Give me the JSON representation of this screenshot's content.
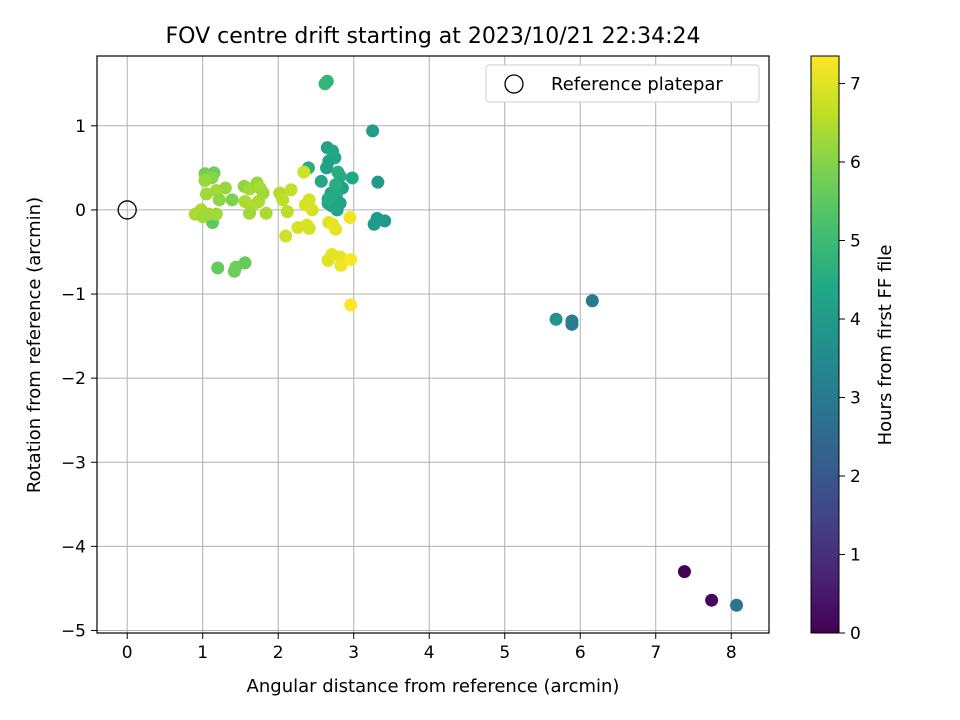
{
  "chart_data": {
    "type": "scatter",
    "title": "FOV centre drift starting at 2023/10/21 22:34:24",
    "xlabel": "Angular distance from reference (arcmin)",
    "ylabel": "Rotation from reference (arcmin)",
    "xlim": [
      -0.4,
      8.5
    ],
    "ylim": [
      -5.03,
      1.83
    ],
    "xticks": [
      "0",
      "1",
      "2",
      "3",
      "4",
      "5",
      "6",
      "7",
      "8"
    ],
    "yticks": [
      "1",
      "0",
      "−1",
      "−2",
      "−3",
      "−4",
      "−5"
    ],
    "grid": true,
    "legend": {
      "placement": "top-right",
      "entries": [
        "Reference platepar"
      ]
    },
    "reference_point": {
      "x": 0,
      "y": 0
    },
    "colorbar": {
      "label": "Hours from first FF file",
      "range": [
        0,
        7.35
      ],
      "ticks": [
        "0",
        "1",
        "2",
        "3",
        "4",
        "5",
        "6",
        "7"
      ],
      "colormap": "viridis"
    },
    "points": [
      {
        "x": 7.38,
        "y": -4.3,
        "t": 0.0
      },
      {
        "x": 7.74,
        "y": -4.64,
        "t": 0.15
      },
      {
        "x": 8.07,
        "y": -4.7,
        "t": 2.85
      },
      {
        "x": 6.16,
        "y": -1.08,
        "t": 2.9
      },
      {
        "x": 5.89,
        "y": -1.36,
        "t": 3.05
      },
      {
        "x": 5.89,
        "y": -1.32,
        "t": 3.1
      },
      {
        "x": 5.68,
        "y": -1.3,
        "t": 3.8
      },
      {
        "x": 3.25,
        "y": 0.94,
        "t": 4.05
      },
      {
        "x": 3.32,
        "y": 0.33,
        "t": 3.95
      },
      {
        "x": 3.41,
        "y": -0.13,
        "t": 3.9
      },
      {
        "x": 3.31,
        "y": -0.1,
        "t": 4.0
      },
      {
        "x": 3.27,
        "y": -0.17,
        "t": 4.0
      },
      {
        "x": 2.62,
        "y": 1.5,
        "t": 4.85
      },
      {
        "x": 2.65,
        "y": 1.53,
        "t": 4.8
      },
      {
        "x": 2.65,
        "y": 0.74,
        "t": 4.2
      },
      {
        "x": 2.72,
        "y": 0.7,
        "t": 4.4
      },
      {
        "x": 2.75,
        "y": 0.62,
        "t": 4.35
      },
      {
        "x": 2.67,
        "y": 0.58,
        "t": 4.3
      },
      {
        "x": 2.64,
        "y": 0.5,
        "t": 4.2
      },
      {
        "x": 2.79,
        "y": 0.45,
        "t": 4.6
      },
      {
        "x": 2.82,
        "y": 0.4,
        "t": 4.5
      },
      {
        "x": 2.98,
        "y": 0.38,
        "t": 4.4
      },
      {
        "x": 2.57,
        "y": 0.34,
        "t": 4.4
      },
      {
        "x": 2.8,
        "y": 0.3,
        "t": 4.3
      },
      {
        "x": 2.85,
        "y": 0.26,
        "t": 4.2
      },
      {
        "x": 2.4,
        "y": 0.5,
        "t": 4.6
      },
      {
        "x": 2.7,
        "y": 0.2,
        "t": 4.3
      },
      {
        "x": 2.77,
        "y": 0.17,
        "t": 4.5
      },
      {
        "x": 2.66,
        "y": 0.08,
        "t": 4.4
      },
      {
        "x": 2.71,
        "y": 0.05,
        "t": 4.2
      },
      {
        "x": 2.82,
        "y": 0.08,
        "t": 4.3
      },
      {
        "x": 2.78,
        "y": 0.0,
        "t": 4.3
      },
      {
        "x": 2.66,
        "y": 0.13,
        "t": 4.5
      },
      {
        "x": 2.76,
        "y": 0.3,
        "t": 4.6
      },
      {
        "x": 1.03,
        "y": 0.43,
        "t": 5.8
      },
      {
        "x": 1.15,
        "y": 0.44,
        "t": 5.7
      },
      {
        "x": 1.12,
        "y": 0.38,
        "t": 6.0
      },
      {
        "x": 1.03,
        "y": 0.35,
        "t": 6.2
      },
      {
        "x": 1.3,
        "y": 0.26,
        "t": 6.2
      },
      {
        "x": 1.18,
        "y": 0.23,
        "t": 6.3
      },
      {
        "x": 1.05,
        "y": 0.19,
        "t": 6.3
      },
      {
        "x": 1.39,
        "y": 0.12,
        "t": 5.9
      },
      {
        "x": 1.22,
        "y": 0.12,
        "t": 6.1
      },
      {
        "x": 1.13,
        "y": -0.15,
        "t": 5.5
      },
      {
        "x": 1.18,
        "y": -0.05,
        "t": 6.3
      },
      {
        "x": 1.08,
        "y": -0.05,
        "t": 6.3
      },
      {
        "x": 0.98,
        "y": 0.0,
        "t": 6.4
      },
      {
        "x": 0.9,
        "y": -0.05,
        "t": 6.4
      },
      {
        "x": 1.0,
        "y": -0.08,
        "t": 6.3
      },
      {
        "x": 1.55,
        "y": 0.28,
        "t": 6.1
      },
      {
        "x": 1.62,
        "y": 0.25,
        "t": 6.3
      },
      {
        "x": 1.72,
        "y": 0.32,
        "t": 6.2
      },
      {
        "x": 1.76,
        "y": 0.26,
        "t": 6.4
      },
      {
        "x": 1.8,
        "y": 0.2,
        "t": 6.3
      },
      {
        "x": 1.56,
        "y": 0.1,
        "t": 6.4
      },
      {
        "x": 1.66,
        "y": 0.05,
        "t": 6.5
      },
      {
        "x": 1.62,
        "y": -0.04,
        "t": 6.3
      },
      {
        "x": 1.84,
        "y": -0.04,
        "t": 6.4
      },
      {
        "x": 1.74,
        "y": 0.1,
        "t": 6.4
      },
      {
        "x": 1.2,
        "y": -0.69,
        "t": 5.6
      },
      {
        "x": 1.44,
        "y": -0.68,
        "t": 5.7
      },
      {
        "x": 1.42,
        "y": -0.73,
        "t": 5.7
      },
      {
        "x": 1.56,
        "y": -0.63,
        "t": 5.6
      },
      {
        "x": 2.02,
        "y": 0.2,
        "t": 6.5
      },
      {
        "x": 2.17,
        "y": 0.24,
        "t": 6.7
      },
      {
        "x": 2.06,
        "y": 0.12,
        "t": 6.6
      },
      {
        "x": 2.12,
        "y": -0.02,
        "t": 6.6
      },
      {
        "x": 2.1,
        "y": -0.31,
        "t": 6.8
      },
      {
        "x": 2.34,
        "y": 0.45,
        "t": 6.8
      },
      {
        "x": 2.41,
        "y": 0.12,
        "t": 6.9
      },
      {
        "x": 2.36,
        "y": 0.06,
        "t": 6.9
      },
      {
        "x": 2.45,
        "y": 0.0,
        "t": 6.9
      },
      {
        "x": 2.26,
        "y": -0.21,
        "t": 6.9
      },
      {
        "x": 2.38,
        "y": -0.18,
        "t": 7.0
      },
      {
        "x": 2.41,
        "y": -0.22,
        "t": 6.9
      },
      {
        "x": 2.67,
        "y": -0.15,
        "t": 7.0
      },
      {
        "x": 2.72,
        "y": -0.17,
        "t": 7.1
      },
      {
        "x": 2.76,
        "y": -0.23,
        "t": 7.1
      },
      {
        "x": 2.71,
        "y": -0.53,
        "t": 7.1
      },
      {
        "x": 2.66,
        "y": -0.6,
        "t": 7.0
      },
      {
        "x": 2.82,
        "y": -0.56,
        "t": 7.1
      },
      {
        "x": 2.83,
        "y": -0.66,
        "t": 7.2
      },
      {
        "x": 2.96,
        "y": -0.59,
        "t": 7.3
      },
      {
        "x": 2.95,
        "y": -0.09,
        "t": 7.2
      },
      {
        "x": 2.96,
        "y": -1.13,
        "t": 7.35
      }
    ]
  }
}
